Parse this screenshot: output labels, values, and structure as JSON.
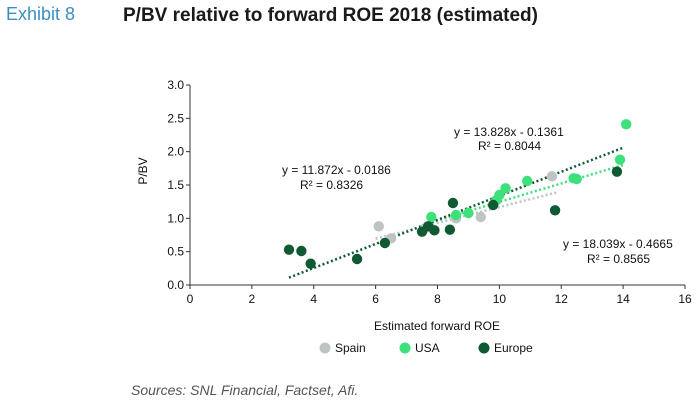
{
  "header": {
    "exhibit": "Exhibit 8",
    "title": "P/BV relative to forward ROE 2018 (estimated)"
  },
  "footer": {
    "source": "Sources: SNL Financial, Factset, Afi."
  },
  "chart_data": {
    "type": "scatter",
    "title": "P/BV relative to forward ROE 2018 (estimated)",
    "xlabel": "Estimated forward ROE",
    "ylabel": "P/BV",
    "xlim": [
      0,
      16
    ],
    "ylim": [
      0,
      3.0
    ],
    "xticks": [
      0,
      2,
      4,
      6,
      8,
      10,
      12,
      14,
      16
    ],
    "yticks": [
      0.0,
      0.5,
      1.0,
      1.5,
      2.0,
      2.5,
      3.0
    ],
    "ytick_labels": [
      "0.0",
      "0.5",
      "1.0",
      "1.5",
      "2.0",
      "2.5",
      "3.0"
    ],
    "grid": false,
    "legend_position": "bottom",
    "series": [
      {
        "name": "Spain",
        "color": "#bfc4c2",
        "points": [
          [
            6.1,
            0.88
          ],
          [
            6.5,
            0.7
          ],
          [
            8.6,
            1.0
          ],
          [
            9.4,
            1.02
          ],
          [
            11.7,
            1.63
          ],
          [
            7.6,
            0.85
          ]
        ],
        "trendline": {
          "slope": 11.872,
          "intercept": -0.0186,
          "x_range": [
            6.0,
            11.9
          ],
          "equation": "y = 11.872x - 0.0186",
          "r2": "R² = 0.8326"
        }
      },
      {
        "name": "USA",
        "color": "#3ee07c",
        "points": [
          [
            7.8,
            1.02
          ],
          [
            8.6,
            1.05
          ],
          [
            9.0,
            1.08
          ],
          [
            9.9,
            1.27
          ],
          [
            10.0,
            1.35
          ],
          [
            10.2,
            1.45
          ],
          [
            10.9,
            1.56
          ],
          [
            12.4,
            1.6
          ],
          [
            12.5,
            1.59
          ],
          [
            13.9,
            1.88
          ],
          [
            14.1,
            2.41
          ]
        ],
        "trendline": {
          "slope": 13.828,
          "intercept": -0.1361,
          "x_range": [
            7.8,
            14.0
          ],
          "equation": "y = 13.828x - 0.1361",
          "r2": "R² = 0.8044"
        }
      },
      {
        "name": "Europe",
        "color": "#0f5a32",
        "points": [
          [
            3.2,
            0.53
          ],
          [
            3.6,
            0.51
          ],
          [
            3.9,
            0.32
          ],
          [
            5.4,
            0.39
          ],
          [
            6.3,
            0.63
          ],
          [
            7.5,
            0.8
          ],
          [
            7.7,
            0.88
          ],
          [
            7.9,
            0.82
          ],
          [
            8.4,
            0.83
          ],
          [
            8.5,
            1.23
          ],
          [
            9.8,
            1.2
          ],
          [
            11.8,
            1.12
          ],
          [
            13.8,
            1.7
          ]
        ],
        "trendline": {
          "slope": 18.039,
          "intercept": -0.4665,
          "x_range": [
            3.2,
            14.0
          ],
          "equation": "y = 18.039x - 0.4665",
          "r2": "R² = 0.8565"
        }
      }
    ]
  }
}
